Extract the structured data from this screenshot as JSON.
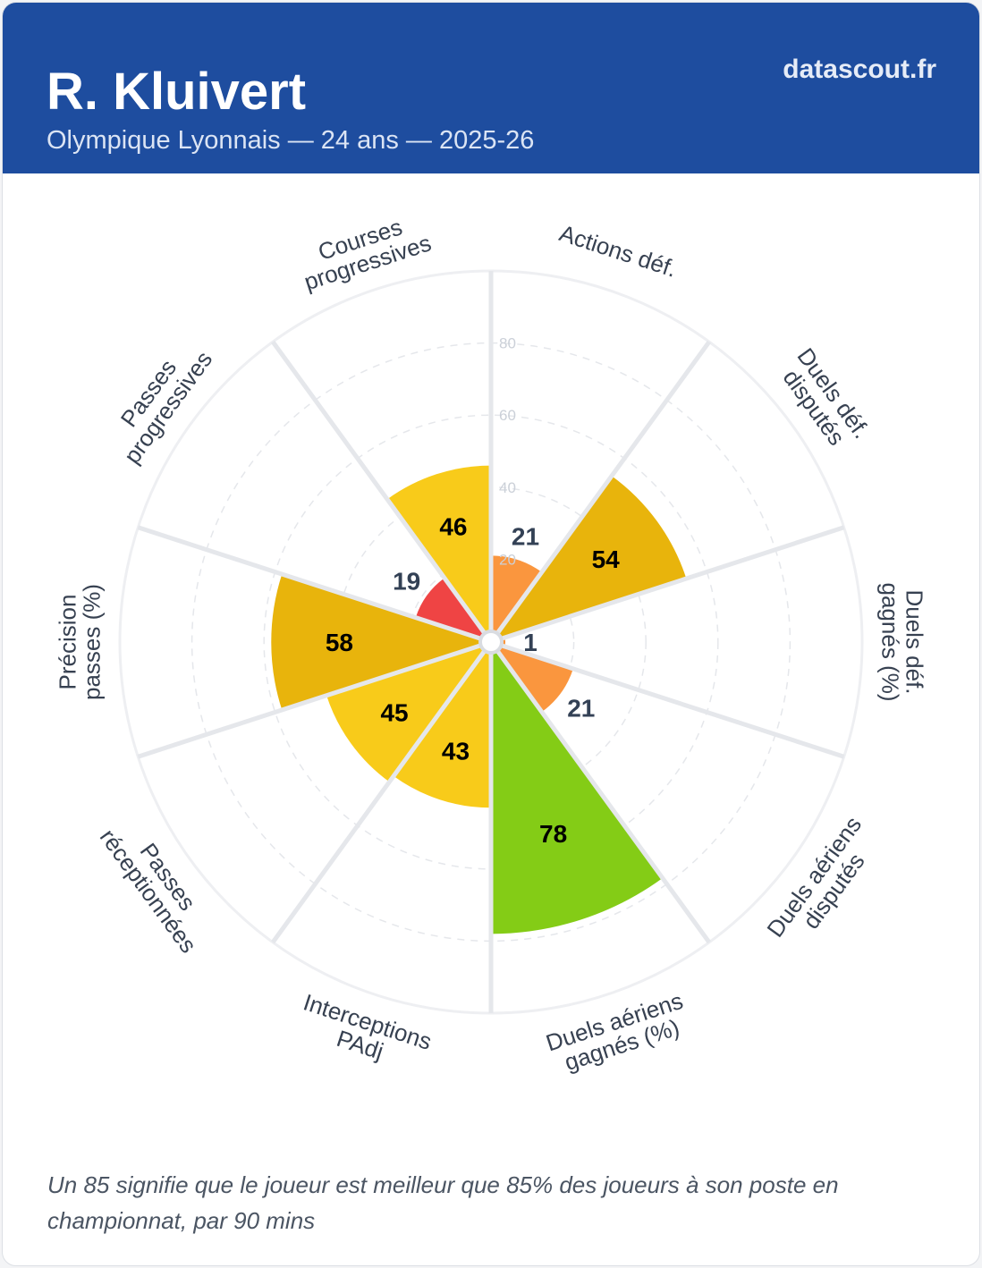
{
  "header": {
    "player": "R. Kluivert",
    "subtitle": "Olympique Lyonnais — 24 ans — 2025-26",
    "brand": "datascout.fr"
  },
  "chart_data": {
    "type": "polar-area",
    "rlim": [
      0,
      100
    ],
    "ticks": [
      20,
      40,
      60,
      80
    ],
    "categories": [
      [
        "Actions déf."
      ],
      [
        "Duels déf.",
        "disputés"
      ],
      [
        "Duels déf.",
        "gagnés (%)"
      ],
      [
        "Duels aériens",
        "disputés"
      ],
      [
        "Duels aériens",
        "gagnés (%)"
      ],
      [
        "Interceptions",
        "PAdj"
      ],
      [
        "Passes",
        "réceptionnées"
      ],
      [
        "Précision",
        "passes (%)"
      ],
      [
        "Passes",
        "progressives"
      ],
      [
        "Courses",
        "progressives"
      ]
    ],
    "values": [
      21,
      54,
      1,
      21,
      78,
      43,
      45,
      58,
      19,
      46
    ],
    "colors": [
      "#fa963e",
      "#e8b40c",
      "#fa963e",
      "#fa963e",
      "#84cc16",
      "#f8cb1a",
      "#f8cb1a",
      "#e8b40c",
      "#ef4444",
      "#f8cb1a"
    ]
  },
  "footer": {
    "note": "Un 85 signifie que le joueur est meilleur que 85% des joueurs à son poste en championnat, par 90 mins"
  }
}
